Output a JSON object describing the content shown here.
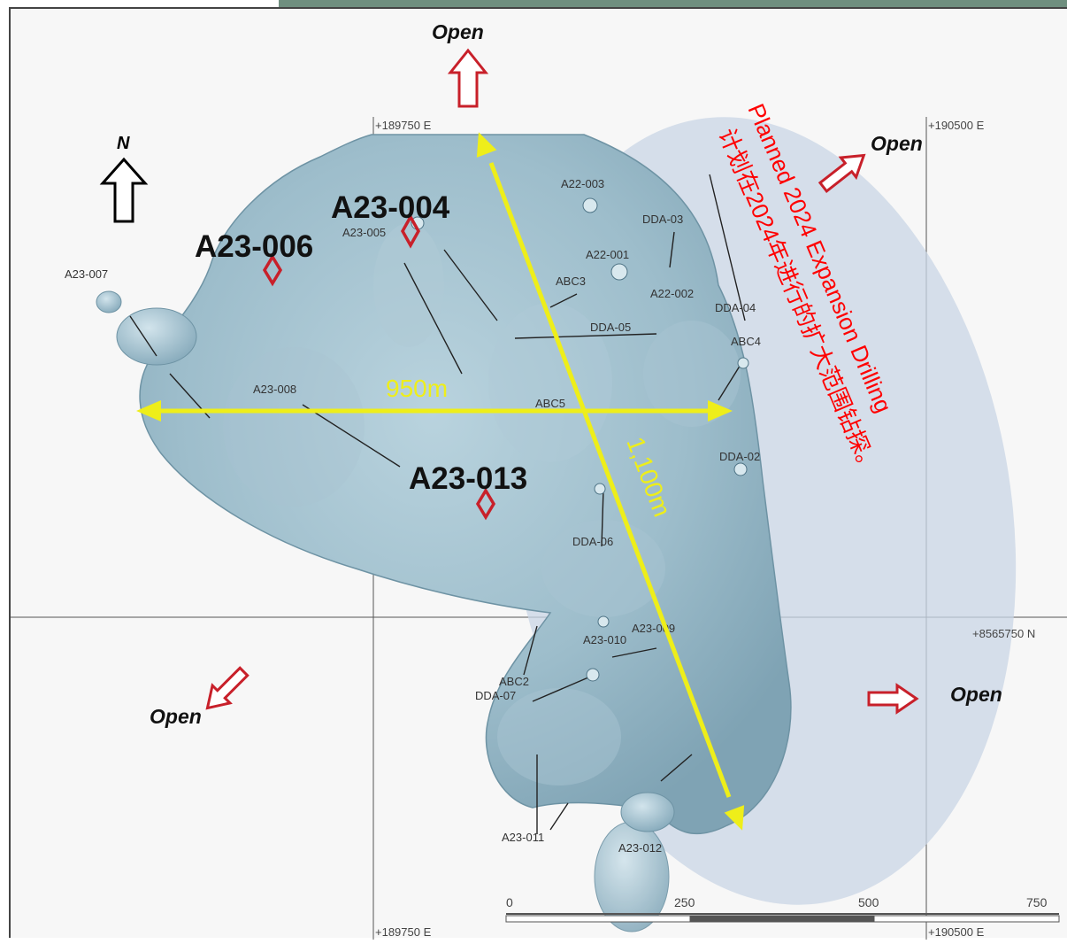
{
  "coords": {
    "e_west_top": "+189750 E",
    "e_east_top": "+190500 E",
    "e_west_bottom": "+189750 E",
    "e_east_bottom": "+190500 E",
    "n_line": "+8565750 N"
  },
  "north_label": "N",
  "open_labels": {
    "top": "Open",
    "right_top": "Open",
    "bottom_left": "Open",
    "bottom_right": "Open"
  },
  "measurements": {
    "width": "950m",
    "diagonal": "1,100m"
  },
  "expansion": {
    "title_en": "Planned 2024 Expansion Drilling",
    "title_zh": "计划在2024年进行的扩大范围钻探。"
  },
  "highlight_holes": {
    "a23_004": "A23-004",
    "a23_006": "A23-006",
    "a23_013": "A23-013"
  },
  "holes": {
    "a23_007": "A23-007",
    "a23_008": "A23-008",
    "a23_005": "A23-005",
    "a22_003": "A22-003",
    "dda_03": "DDA-03",
    "a22_001": "A22-001",
    "abc3": "ABC3",
    "a22_002": "A22-002",
    "dda_04": "DDA-04",
    "dda_05": "DDA-05",
    "abc4": "ABC4",
    "abc5": "ABC5",
    "dda_02": "DDA-02",
    "dda_06": "DDA-06",
    "a23_009": "A23-009",
    "a23_010": "A23-010",
    "abc2": "ABC2",
    "dda_07": "DDA-07",
    "a23_011": "A23-011",
    "a23_012": "A23-012"
  },
  "scale_bar": {
    "labels": [
      "0",
      "250",
      "500",
      "750"
    ]
  },
  "colors": {
    "orebody": "#9fbfcc",
    "orebody_dark": "#6e93a4",
    "expansion_ellipse": "#c9d6e6",
    "arrow_red": "#c8202a",
    "measure_yellow": "#eeee1a",
    "annotation_red": "#ff0000"
  }
}
